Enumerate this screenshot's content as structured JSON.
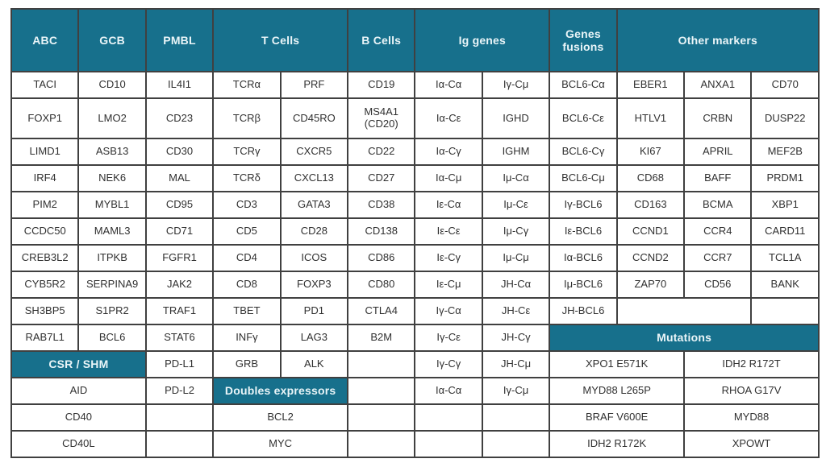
{
  "colors": {
    "teal": "#17708C",
    "header_text": "#EAF5F8",
    "body_text": "#303030",
    "grid_border": "#404040",
    "background": "#FFFFFF"
  },
  "table": {
    "columns": 12,
    "rows": [
      {
        "kind": "header",
        "cells": [
          {
            "text": "ABC",
            "colspan": 1,
            "variant": "header"
          },
          {
            "text": "GCB",
            "colspan": 1,
            "variant": "header"
          },
          {
            "text": "PMBL",
            "colspan": 1,
            "variant": "header"
          },
          {
            "text": "T Cells",
            "colspan": 2,
            "variant": "header"
          },
          {
            "text": "B Cells",
            "colspan": 1,
            "variant": "header"
          },
          {
            "text": "Ig genes",
            "colspan": 2,
            "variant": "header"
          },
          {
            "text": "Genes\nfusions",
            "colspan": 1,
            "variant": "header"
          },
          {
            "text": "Other markers",
            "colspan": 3,
            "variant": "header"
          }
        ]
      },
      {
        "cells": [
          {
            "text": "TACI",
            "colspan": 1
          },
          {
            "text": "CD10",
            "colspan": 1
          },
          {
            "text": "IL4I1",
            "colspan": 1
          },
          {
            "text": "TCRα",
            "colspan": 1
          },
          {
            "text": "PRF",
            "colspan": 1
          },
          {
            "text": "CD19",
            "colspan": 1
          },
          {
            "text": "Iα-Cα",
            "colspan": 1
          },
          {
            "text": "Iγ-Cμ",
            "colspan": 1
          },
          {
            "text": "BCL6-Cα",
            "colspan": 1
          },
          {
            "text": "EBER1",
            "colspan": 1
          },
          {
            "text": "ANXA1",
            "colspan": 1
          },
          {
            "text": "CD70",
            "colspan": 1
          }
        ]
      },
      {
        "tall": true,
        "cells": [
          {
            "text": "FOXP1",
            "colspan": 1
          },
          {
            "text": "LMO2",
            "colspan": 1
          },
          {
            "text": "CD23",
            "colspan": 1
          },
          {
            "text": "TCRβ",
            "colspan": 1
          },
          {
            "text": "CD45RO",
            "colspan": 1
          },
          {
            "text": "MS4A1\n(CD20)",
            "colspan": 1
          },
          {
            "text": "Iα-Cε",
            "colspan": 1
          },
          {
            "text": "IGHD",
            "colspan": 1
          },
          {
            "text": "BCL6-Cε",
            "colspan": 1
          },
          {
            "text": "HTLV1",
            "colspan": 1
          },
          {
            "text": "CRBN",
            "colspan": 1
          },
          {
            "text": "DUSP22",
            "colspan": 1
          }
        ]
      },
      {
        "cells": [
          {
            "text": "LIMD1",
            "colspan": 1
          },
          {
            "text": "ASB13",
            "colspan": 1
          },
          {
            "text": "CD30",
            "colspan": 1
          },
          {
            "text": "TCRγ",
            "colspan": 1
          },
          {
            "text": "CXCR5",
            "colspan": 1
          },
          {
            "text": "CD22",
            "colspan": 1
          },
          {
            "text": "Iα-Cγ",
            "colspan": 1
          },
          {
            "text": "IGHM",
            "colspan": 1
          },
          {
            "text": "BCL6-Cγ",
            "colspan": 1
          },
          {
            "text": "KI67",
            "colspan": 1
          },
          {
            "text": "APRIL",
            "colspan": 1
          },
          {
            "text": "MEF2B",
            "colspan": 1
          }
        ]
      },
      {
        "cells": [
          {
            "text": "IRF4",
            "colspan": 1
          },
          {
            "text": "NEK6",
            "colspan": 1
          },
          {
            "text": "MAL",
            "colspan": 1
          },
          {
            "text": "TCRδ",
            "colspan": 1
          },
          {
            "text": "CXCL13",
            "colspan": 1
          },
          {
            "text": "CD27",
            "colspan": 1
          },
          {
            "text": "Iα-Cμ",
            "colspan": 1
          },
          {
            "text": "Iμ-Cα",
            "colspan": 1
          },
          {
            "text": "BCL6-Cμ",
            "colspan": 1
          },
          {
            "text": "CD68",
            "colspan": 1
          },
          {
            "text": "BAFF",
            "colspan": 1
          },
          {
            "text": "PRDM1",
            "colspan": 1
          }
        ]
      },
      {
        "cells": [
          {
            "text": "PIM2",
            "colspan": 1
          },
          {
            "text": "MYBL1",
            "colspan": 1
          },
          {
            "text": "CD95",
            "colspan": 1
          },
          {
            "text": "CD3",
            "colspan": 1
          },
          {
            "text": "GATA3",
            "colspan": 1
          },
          {
            "text": "CD38",
            "colspan": 1
          },
          {
            "text": "Iε-Cα",
            "colspan": 1
          },
          {
            "text": "Iμ-Cε",
            "colspan": 1
          },
          {
            "text": "Iγ-BCL6",
            "colspan": 1
          },
          {
            "text": "CD163",
            "colspan": 1
          },
          {
            "text": "BCMA",
            "colspan": 1
          },
          {
            "text": "XBP1",
            "colspan": 1
          }
        ]
      },
      {
        "cells": [
          {
            "text": "CCDC50",
            "colspan": 1
          },
          {
            "text": "MAML3",
            "colspan": 1
          },
          {
            "text": "CD71",
            "colspan": 1
          },
          {
            "text": "CD5",
            "colspan": 1
          },
          {
            "text": "CD28",
            "colspan": 1
          },
          {
            "text": "CD138",
            "colspan": 1
          },
          {
            "text": "Iε-Cε",
            "colspan": 1
          },
          {
            "text": "Iμ-Cγ",
            "colspan": 1
          },
          {
            "text": "Iε-BCL6",
            "colspan": 1
          },
          {
            "text": "CCND1",
            "colspan": 1
          },
          {
            "text": "CCR4",
            "colspan": 1
          },
          {
            "text": "CARD11",
            "colspan": 1
          }
        ]
      },
      {
        "cells": [
          {
            "text": "CREB3L2",
            "colspan": 1
          },
          {
            "text": "ITPKB",
            "colspan": 1
          },
          {
            "text": "FGFR1",
            "colspan": 1
          },
          {
            "text": "CD4",
            "colspan": 1
          },
          {
            "text": "ICOS",
            "colspan": 1
          },
          {
            "text": "CD86",
            "colspan": 1
          },
          {
            "text": "Iε-Cγ",
            "colspan": 1
          },
          {
            "text": "Iμ-Cμ",
            "colspan": 1
          },
          {
            "text": "Iα-BCL6",
            "colspan": 1
          },
          {
            "text": "CCND2",
            "colspan": 1
          },
          {
            "text": "CCR7",
            "colspan": 1
          },
          {
            "text": "TCL1A",
            "colspan": 1
          }
        ]
      },
      {
        "cells": [
          {
            "text": "CYB5R2",
            "colspan": 1
          },
          {
            "text": "SERPINA9",
            "colspan": 1
          },
          {
            "text": "JAK2",
            "colspan": 1
          },
          {
            "text": "CD8",
            "colspan": 1
          },
          {
            "text": "FOXP3",
            "colspan": 1
          },
          {
            "text": "CD80",
            "colspan": 1
          },
          {
            "text": "Iε-Cμ",
            "colspan": 1
          },
          {
            "text": "JH-Cα",
            "colspan": 1
          },
          {
            "text": "Iμ-BCL6",
            "colspan": 1
          },
          {
            "text": "ZAP70",
            "colspan": 1
          },
          {
            "text": "CD56",
            "colspan": 1
          },
          {
            "text": "BANK",
            "colspan": 1
          }
        ]
      },
      {
        "cells": [
          {
            "text": "SH3BP5",
            "colspan": 1
          },
          {
            "text": "S1PR2",
            "colspan": 1
          },
          {
            "text": "TRAF1",
            "colspan": 1
          },
          {
            "text": "TBET",
            "colspan": 1
          },
          {
            "text": "PD1",
            "colspan": 1
          },
          {
            "text": "CTLA4",
            "colspan": 1
          },
          {
            "text": "Iγ-Cα",
            "colspan": 1
          },
          {
            "text": "JH-Cε",
            "colspan": 1
          },
          {
            "text": "JH-BCL6",
            "colspan": 1
          },
          {
            "text": "",
            "colspan": 2
          },
          {
            "text": "",
            "colspan": 1
          }
        ]
      },
      {
        "cells": [
          {
            "text": "RAB7L1",
            "colspan": 1
          },
          {
            "text": "BCL6",
            "colspan": 1
          },
          {
            "text": "STAT6",
            "colspan": 1
          },
          {
            "text": "INFγ",
            "colspan": 1
          },
          {
            "text": "LAG3",
            "colspan": 1
          },
          {
            "text": "B2M",
            "colspan": 1
          },
          {
            "text": "Iγ-Cε",
            "colspan": 1
          },
          {
            "text": "JH-Cγ",
            "colspan": 1
          },
          {
            "text": "Mutations",
            "colspan": 4,
            "variant": "header"
          }
        ]
      },
      {
        "cells": [
          {
            "text": "CSR / SHM",
            "colspan": 2,
            "variant": "header"
          },
          {
            "text": "PD-L1",
            "colspan": 1
          },
          {
            "text": "GRB",
            "colspan": 1
          },
          {
            "text": "ALK",
            "colspan": 1
          },
          {
            "text": "",
            "colspan": 1
          },
          {
            "text": "Iγ-Cγ",
            "colspan": 1
          },
          {
            "text": "JH-Cμ",
            "colspan": 1
          },
          {
            "text": "XPO1 E571K",
            "colspan": 2
          },
          {
            "text": "IDH2 R172T",
            "colspan": 2
          }
        ]
      },
      {
        "cells": [
          {
            "text": "AID",
            "colspan": 2
          },
          {
            "text": "PD-L2",
            "colspan": 1
          },
          {
            "text": "Doubles expressors",
            "colspan": 2,
            "variant": "header"
          },
          {
            "text": "",
            "colspan": 1
          },
          {
            "text": "Iα-Cα",
            "colspan": 1
          },
          {
            "text": "Iγ-Cμ",
            "colspan": 1
          },
          {
            "text": "MYD88 L265P",
            "colspan": 2
          },
          {
            "text": "RHOA G17V",
            "colspan": 2
          }
        ]
      },
      {
        "cells": [
          {
            "text": "CD40",
            "colspan": 2
          },
          {
            "text": "",
            "colspan": 1
          },
          {
            "text": "BCL2",
            "colspan": 2
          },
          {
            "text": "",
            "colspan": 1
          },
          {
            "text": "",
            "colspan": 1
          },
          {
            "text": "",
            "colspan": 1
          },
          {
            "text": "BRAF V600E",
            "colspan": 2
          },
          {
            "text": "MYD88",
            "colspan": 2
          }
        ]
      },
      {
        "cells": [
          {
            "text": "CD40L",
            "colspan": 2
          },
          {
            "text": "",
            "colspan": 1
          },
          {
            "text": "MYC",
            "colspan": 2
          },
          {
            "text": "",
            "colspan": 1
          },
          {
            "text": "",
            "colspan": 1
          },
          {
            "text": "",
            "colspan": 1
          },
          {
            "text": "IDH2 R172K",
            "colspan": 2
          },
          {
            "text": "XPOWT",
            "colspan": 2
          }
        ]
      }
    ]
  }
}
